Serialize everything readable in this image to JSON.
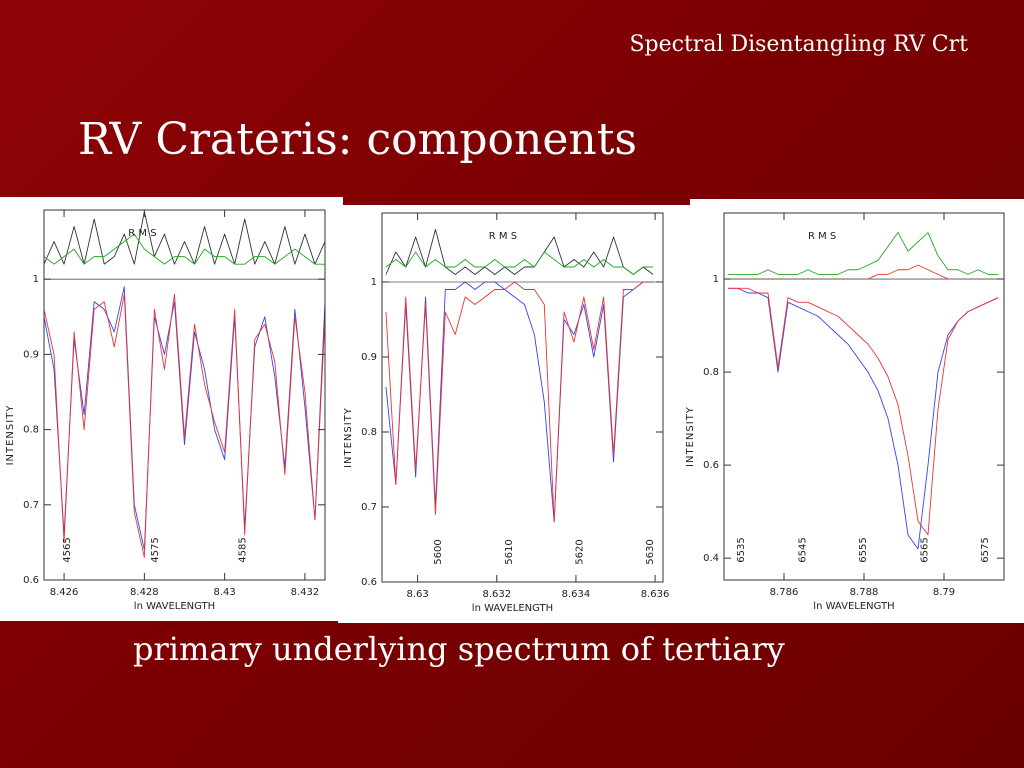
{
  "header": {
    "title": "Spectral Disentangling RV Crt"
  },
  "slide_title": "RV Crateris: components",
  "caption": "primary underlying spectrum of tertiary",
  "chart_data": [
    {
      "type": "line",
      "x_label": "ln WAVELENGTH",
      "y_label": "INTENSITY",
      "annotation": "R M S",
      "xlim": [
        8.4255,
        8.4325
      ],
      "ylim": [
        0.6,
        1.092
      ],
      "xticks": [
        8.426,
        8.428,
        8.43,
        8.432
      ],
      "yticks": [
        0.6,
        0.7,
        0.8,
        0.9,
        1
      ],
      "hline": 1,
      "markers": [
        {
          "value": 8.42607,
          "label": "4565"
        },
        {
          "value": 8.42826,
          "label": "4575"
        },
        {
          "value": 8.43044,
          "label": "4585"
        }
      ],
      "x": [
        8.4255,
        8.42575,
        8.426,
        8.42625,
        8.4265,
        8.42675,
        8.427,
        8.42725,
        8.4275,
        8.42775,
        8.428,
        8.42825,
        8.4285,
        8.42875,
        8.429,
        8.42925,
        8.4295,
        8.42975,
        8.43,
        8.43025,
        8.4305,
        8.43075,
        8.431,
        8.43125,
        8.4315,
        8.43175,
        8.432,
        8.43225,
        8.4325
      ],
      "series": [
        {
          "color": "#333333",
          "values": [
            1.02,
            1.05,
            1.02,
            1.07,
            1.02,
            1.08,
            1.02,
            1.03,
            1.06,
            1.02,
            1.09,
            1.03,
            1.06,
            1.02,
            1.05,
            1.02,
            1.07,
            1.02,
            1.06,
            1.02,
            1.08,
            1.02,
            1.05,
            1.02,
            1.07,
            1.02,
            1.06,
            1.02,
            1.05
          ]
        },
        {
          "color": "#22aa22",
          "values": [
            1.03,
            1.02,
            1.03,
            1.04,
            1.02,
            1.03,
            1.03,
            1.04,
            1.05,
            1.06,
            1.04,
            1.03,
            1.02,
            1.03,
            1.03,
            1.02,
            1.04,
            1.03,
            1.03,
            1.02,
            1.02,
            1.03,
            1.03,
            1.02,
            1.03,
            1.04,
            1.03,
            1.02,
            1.02
          ]
        },
        {
          "color": "#3344ee",
          "values": [
            0.95,
            0.88,
            0.66,
            0.92,
            0.82,
            0.97,
            0.96,
            0.93,
            0.99,
            0.7,
            0.64,
            0.95,
            0.9,
            0.97,
            0.78,
            0.93,
            0.88,
            0.8,
            0.76,
            0.95,
            0.67,
            0.91,
            0.95,
            0.87,
            0.75,
            0.96,
            0.83,
            0.68,
            0.97
          ]
        },
        {
          "color": "#ee3333",
          "values": [
            0.96,
            0.9,
            0.65,
            0.93,
            0.8,
            0.96,
            0.97,
            0.91,
            0.98,
            0.69,
            0.63,
            0.96,
            0.88,
            0.98,
            0.79,
            0.94,
            0.86,
            0.81,
            0.77,
            0.96,
            0.66,
            0.92,
            0.94,
            0.89,
            0.74,
            0.95,
            0.85,
            0.68,
            0.95
          ]
        }
      ]
    },
    {
      "type": "line",
      "x_label": "ln WAVELENGTH",
      "y_label": "INTENSITY",
      "annotation": "R M S",
      "xlim": [
        8.6291,
        8.6362
      ],
      "ylim": [
        0.6,
        1.092
      ],
      "xticks": [
        8.63,
        8.632,
        8.634,
        8.636
      ],
      "yticks": [
        0.6,
        0.7,
        0.8,
        0.9,
        1
      ],
      "hline": 1,
      "markers": [
        {
          "value": 8.63052,
          "label": "5600"
        },
        {
          "value": 8.63231,
          "label": "5610"
        },
        {
          "value": 8.63409,
          "label": "5620"
        },
        {
          "value": 8.63587,
          "label": "5630"
        }
      ],
      "x": [
        8.6292,
        8.62945,
        8.6297,
        8.62995,
        8.6302,
        8.63045,
        8.6307,
        8.63095,
        8.6312,
        8.63145,
        8.6317,
        8.63195,
        8.6322,
        8.63245,
        8.6327,
        8.63295,
        8.6332,
        8.63345,
        8.6337,
        8.63395,
        8.6342,
        8.63445,
        8.6347,
        8.63495,
        8.6352,
        8.63545,
        8.6357,
        8.63595
      ],
      "series": [
        {
          "color": "#333333",
          "values": [
            1.01,
            1.04,
            1.02,
            1.06,
            1.02,
            1.07,
            1.02,
            1.01,
            1.02,
            1.01,
            1.02,
            1.01,
            1.02,
            1.01,
            1.02,
            1.02,
            1.04,
            1.06,
            1.02,
            1.03,
            1.02,
            1.04,
            1.02,
            1.06,
            1.02,
            1.01,
            1.02,
            1.01
          ]
        },
        {
          "color": "#22aa22",
          "values": [
            1.02,
            1.03,
            1.02,
            1.04,
            1.02,
            1.03,
            1.02,
            1.02,
            1.03,
            1.02,
            1.02,
            1.03,
            1.02,
            1.02,
            1.03,
            1.02,
            1.04,
            1.03,
            1.02,
            1.02,
            1.03,
            1.02,
            1.03,
            1.02,
            1.02,
            1.01,
            1.02,
            1.02
          ]
        },
        {
          "color": "#3344ee",
          "values": [
            0.86,
            0.73,
            0.97,
            0.74,
            0.98,
            0.7,
            0.99,
            0.99,
            1.0,
            0.99,
            1.0,
            1.0,
            0.99,
            0.98,
            0.97,
            0.93,
            0.84,
            0.68,
            0.95,
            0.93,
            0.97,
            0.9,
            0.97,
            0.76,
            0.98,
            0.99,
            1.0,
            1.0
          ]
        },
        {
          "color": "#ee3333",
          "values": [
            0.96,
            0.73,
            0.98,
            0.75,
            0.97,
            0.69,
            0.96,
            0.93,
            0.98,
            0.97,
            0.98,
            0.99,
            0.99,
            1.0,
            0.99,
            0.99,
            0.97,
            0.68,
            0.96,
            0.92,
            0.98,
            0.91,
            0.98,
            0.77,
            0.99,
            0.99,
            1.0,
            1.0
          ]
        }
      ]
    },
    {
      "type": "line",
      "x_label": "ln WAVELENGTH",
      "y_label": "INTENSITY",
      "annotation": "R M S",
      "xlim": [
        8.7845,
        8.7915
      ],
      "ylim": [
        0.353,
        1.142
      ],
      "xticks": [
        8.786,
        8.788,
        8.79
      ],
      "yticks": [
        0.4,
        0.6,
        0.8,
        1
      ],
      "hline": 1,
      "markers": [
        {
          "value": 8.78493,
          "label": "6535"
        },
        {
          "value": 8.78646,
          "label": "6545"
        },
        {
          "value": 8.78798,
          "label": "6555"
        },
        {
          "value": 8.78951,
          "label": "6565"
        },
        {
          "value": 8.79103,
          "label": "6575"
        }
      ],
      "x": [
        8.7846,
        8.78485,
        8.7851,
        8.78535,
        8.7856,
        8.78585,
        8.7861,
        8.78635,
        8.7866,
        8.78685,
        8.7871,
        8.78735,
        8.7876,
        8.78785,
        8.7881,
        8.78835,
        8.7886,
        8.78885,
        8.7891,
        8.78935,
        8.7896,
        8.78985,
        8.7901,
        8.79035,
        8.7906,
        8.79085,
        8.7911,
        8.79135
      ],
      "series": [
        {
          "color": "#22aa22",
          "values": [
            1.01,
            1.01,
            1.01,
            1.01,
            1.02,
            1.01,
            1.01,
            1.01,
            1.02,
            1.01,
            1.01,
            1.01,
            1.02,
            1.02,
            1.03,
            1.04,
            1.07,
            1.1,
            1.06,
            1.08,
            1.1,
            1.05,
            1.02,
            1.02,
            1.01,
            1.02,
            1.01,
            1.01
          ]
        },
        {
          "color": "#ee3333",
          "values": [
            1.0,
            1.0,
            1.0,
            1.0,
            1.0,
            1.0,
            1.0,
            1.0,
            1.0,
            1.0,
            1.0,
            1.0,
            1.0,
            1.0,
            1.0,
            1.01,
            1.01,
            1.02,
            1.02,
            1.03,
            1.02,
            1.01,
            1.0,
            1.0,
            1.0,
            1.0,
            1.0,
            1.0
          ]
        },
        {
          "color": "#3344ee",
          "values": [
            0.98,
            0.98,
            0.97,
            0.97,
            0.96,
            0.8,
            0.95,
            0.94,
            0.93,
            0.92,
            0.9,
            0.88,
            0.86,
            0.83,
            0.8,
            0.76,
            0.7,
            0.6,
            0.45,
            0.42,
            0.6,
            0.8,
            0.88,
            0.91,
            0.93,
            0.94,
            0.95,
            0.96
          ]
        },
        {
          "color": "#ee3333",
          "values": [
            0.98,
            0.98,
            0.98,
            0.97,
            0.97,
            0.81,
            0.96,
            0.95,
            0.95,
            0.94,
            0.93,
            0.92,
            0.9,
            0.88,
            0.86,
            0.83,
            0.79,
            0.73,
            0.62,
            0.48,
            0.45,
            0.72,
            0.87,
            0.91,
            0.93,
            0.94,
            0.95,
            0.96
          ]
        }
      ]
    }
  ]
}
